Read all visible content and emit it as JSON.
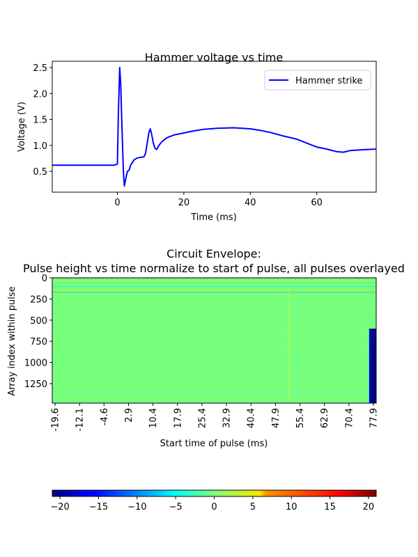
{
  "chart_data": [
    {
      "type": "line",
      "title": "Hammer voltage vs time",
      "xlabel": "Time (ms)",
      "ylabel": "Voltage (V)",
      "xlim": [
        -19.6,
        77.9
      ],
      "ylim": [
        0.1,
        2.62
      ],
      "xticks": [
        0,
        20,
        40,
        60
      ],
      "yticks": [
        0.5,
        1.0,
        1.5,
        2.0,
        2.5
      ],
      "xtick_labels": [
        "0",
        "20",
        "40",
        "60"
      ],
      "ytick_labels": [
        "0.5",
        "1.0",
        "1.5",
        "2.0",
        "2.5"
      ],
      "grid": false,
      "legend_position": "top-right",
      "series": [
        {
          "name": "Hammer strike",
          "color": "#0000ff",
          "x": [
            -19.6,
            -15,
            -10,
            -5,
            -1,
            0,
            0.3,
            0.7,
            1.0,
            1.4,
            1.8,
            2.1,
            2.5,
            3.0,
            3.5,
            4.0,
            5.0,
            6.0,
            7.0,
            8.0,
            8.5,
            9.0,
            9.5,
            9.9,
            10.3,
            10.8,
            11.3,
            11.8,
            12.5,
            13.5,
            15,
            17,
            20,
            23,
            26,
            30,
            35,
            40,
            43,
            46,
            50,
            54,
            58,
            60,
            63,
            66,
            68,
            70,
            72,
            75,
            77.9
          ],
          "y": [
            0.62,
            0.62,
            0.62,
            0.62,
            0.62,
            0.64,
            1.6,
            2.5,
            2.2,
            1.3,
            0.5,
            0.22,
            0.35,
            0.5,
            0.52,
            0.62,
            0.72,
            0.76,
            0.77,
            0.78,
            0.85,
            1.05,
            1.25,
            1.32,
            1.22,
            1.05,
            0.95,
            0.92,
            1.0,
            1.08,
            1.15,
            1.2,
            1.24,
            1.28,
            1.31,
            1.33,
            1.34,
            1.32,
            1.29,
            1.25,
            1.18,
            1.12,
            1.02,
            0.97,
            0.93,
            0.88,
            0.87,
            0.9,
            0.91,
            0.92,
            0.93
          ]
        }
      ]
    },
    {
      "type": "heatmap",
      "title": "Circuit Envelope:",
      "subtitle": "Pulse height vs time normalize to start of pulse, all pulses overlayed",
      "xlabel": "Start time of pulse (ms)",
      "ylabel": "Array index within pulse",
      "x_tick_labels": [
        "-19.6",
        "-12.1",
        "-4.6",
        "2.9",
        "10.4",
        "17.9",
        "25.4",
        "32.9",
        "40.4",
        "47.9",
        "55.4",
        "62.9",
        "70.4",
        "77.9"
      ],
      "y_tick_values": [
        0,
        250,
        500,
        750,
        1000,
        1250
      ],
      "y_tick_labels": [
        "0",
        "250",
        "500",
        "750",
        "1000",
        "1250"
      ],
      "ylim": [
        0,
        1480
      ],
      "colorbar": {
        "colormap": "jet",
        "range": [
          -21,
          21
        ],
        "ticks": [
          -20,
          -15,
          -10,
          -5,
          0,
          5,
          10,
          15,
          20
        ],
        "tick_labels": [
          "−20",
          "−15",
          "−10",
          "−5",
          "0",
          "5",
          "10",
          "15",
          "20"
        ],
        "position": "bottom"
      }
    }
  ]
}
